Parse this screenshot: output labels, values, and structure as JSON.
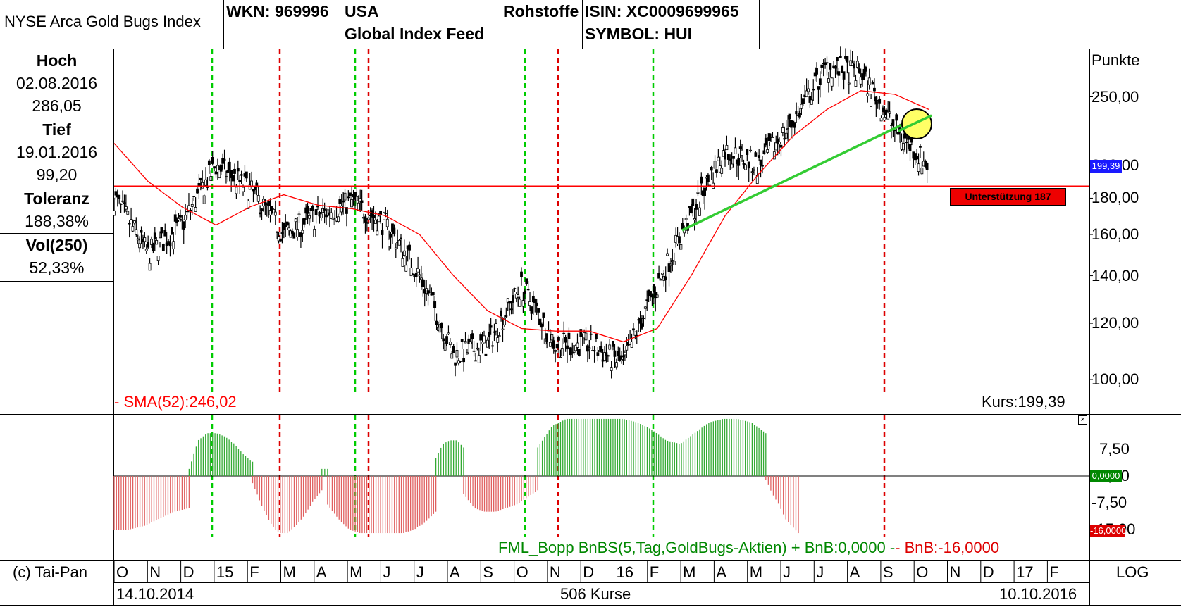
{
  "header": {
    "name": "NYSE Arca Gold Bugs Index",
    "wkn": "WKN: 969996",
    "country": "USA",
    "feed": "Global Index Feed",
    "category": "Rohstoffe",
    "isin": "ISIN: XC0009699965",
    "symbol": "SYMBOL: HUI"
  },
  "left_panel": {
    "hoch_label": "Hoch",
    "hoch_date": "02.08.2016",
    "hoch_value": "286,05",
    "tief_label": "Tief",
    "tief_date": "19.01.2016",
    "tief_value": "99,20",
    "toleranz_label": "Toleranz",
    "toleranz_value": "188,38%",
    "vol_label": "Vol(250)",
    "vol_value": "52,33%"
  },
  "footer": {
    "copyright": "(c) Tai-Pan",
    "start_date": "14.10.2014",
    "count": "506 Kurse",
    "end_date": "10.10.2016",
    "log": "LOG"
  },
  "colors": {
    "sma": "#ff0000",
    "support": "#ff0000",
    "trend": "#33cc33",
    "green_vline": "#00cc00",
    "red_vline": "#dd0000",
    "hist_pos": "#33aa33",
    "hist_neg": "#e06060",
    "circle_fill": "#ffff66",
    "kurs_badge": "#1a1aff",
    "zero_badge": "#008800",
    "neg_badge": "#dd0000"
  },
  "chart_data": [
    {
      "type": "line",
      "ylabel": "Punkte",
      "yscale": "log",
      "yticks": [
        "100,00",
        "120,00",
        "140,00",
        "160,00",
        "180,00",
        "200,00",
        "250,00"
      ],
      "ytick_values": [
        100,
        120,
        140,
        160,
        180,
        200,
        250
      ],
      "x_ticks": [
        "O",
        "N",
        "D",
        "15",
        "F",
        "M",
        "A",
        "M",
        "J",
        "J",
        "A",
        "S",
        "O",
        "N",
        "D",
        "16",
        "F",
        "M",
        "A",
        "M",
        "J",
        "J",
        "A",
        "S",
        "O",
        "N",
        "D",
        "17",
        "F"
      ],
      "series": [
        {
          "kind": "price",
          "dates": [
            "2014-10",
            "2014-11",
            "2014-12",
            "2015-01",
            "2015-02",
            "2015-03",
            "2015-04",
            "2015-05",
            "2015-06",
            "2015-07",
            "2015-08",
            "2015-09",
            "2015-10",
            "2015-11",
            "2015-12",
            "2016-01",
            "2016-02",
            "2016-03",
            "2016-04",
            "2016-05",
            "2016-06",
            "2016-07",
            "2016-08",
            "2016-09",
            "2016-10"
          ],
          "values": [
            180,
            150,
            165,
            200,
            185,
            160,
            170,
            178,
            165,
            140,
            108,
            112,
            135,
            112,
            112,
            105,
            135,
            170,
            210,
            200,
            230,
            275,
            270,
            225,
            199
          ]
        },
        {
          "kind": "sma",
          "values": [
            215,
            190,
            175,
            165,
            175,
            182,
            176,
            174,
            170,
            160,
            140,
            125,
            118,
            117,
            117,
            113,
            118,
            140,
            170,
            195,
            220,
            240,
            255,
            252,
            240
          ]
        }
      ],
      "support_value": 187,
      "support_label": "Unterstützung 187",
      "sma_label": "- SMA(52):246,02",
      "kurs_label": "Kurs:199,39",
      "kurs_badge": "199,39"
    },
    {
      "type": "bar",
      "yticks": [
        "7,50",
        "0,00",
        "-7,50",
        "-15,00"
      ],
      "ytick_values": [
        7.5,
        0,
        -7.5,
        -15
      ],
      "legend": "FML_Bopp BnBS(5,Tag,GoldBugs-Aktien) + BnB:0,0000 -- BnB:-16,0000",
      "legend_main": "FML_Bopp BnBS(5,Tag,GoldBugs-Aktien) + BnB:0,0000 -",
      "legend_neg": "- BnB:-16,0000",
      "zero_badge": "0,0000",
      "neg_badge": "-16,0000",
      "segments": [
        {
          "start": 0.0,
          "end": 0.092,
          "values": [
            -15,
            -15,
            -14,
            -12,
            -10,
            -9
          ]
        },
        {
          "start": 0.092,
          "end": 0.17,
          "values": [
            2,
            10,
            12,
            12,
            11,
            9,
            6,
            4
          ]
        },
        {
          "start": 0.17,
          "end": 0.255,
          "values": [
            -2,
            -8,
            -13,
            -16,
            -16,
            -14,
            -11,
            -7,
            -4
          ]
        },
        {
          "start": 0.255,
          "end": 0.262,
          "values": [
            2
          ]
        },
        {
          "start": 0.262,
          "end": 0.395,
          "values": [
            -8,
            -12,
            -15,
            -16,
            -16,
            -16,
            -16,
            -16,
            -15,
            -13,
            -10
          ]
        },
        {
          "start": 0.395,
          "end": 0.429,
          "values": [
            5,
            9,
            10,
            10,
            8
          ]
        },
        {
          "start": 0.429,
          "end": 0.52,
          "values": [
            -5,
            -9,
            -10,
            -10,
            -9,
            -8,
            -6,
            -4
          ]
        },
        {
          "start": 0.52,
          "end": 0.8,
          "values": [
            8,
            14,
            16,
            16,
            16,
            16,
            16,
            15,
            13,
            10,
            9,
            12,
            15,
            16,
            16,
            15,
            12
          ]
        },
        {
          "start": 0.8,
          "end": 0.84,
          "values": [
            -1,
            -5,
            -8,
            -12,
            -14,
            -16
          ]
        }
      ]
    }
  ]
}
